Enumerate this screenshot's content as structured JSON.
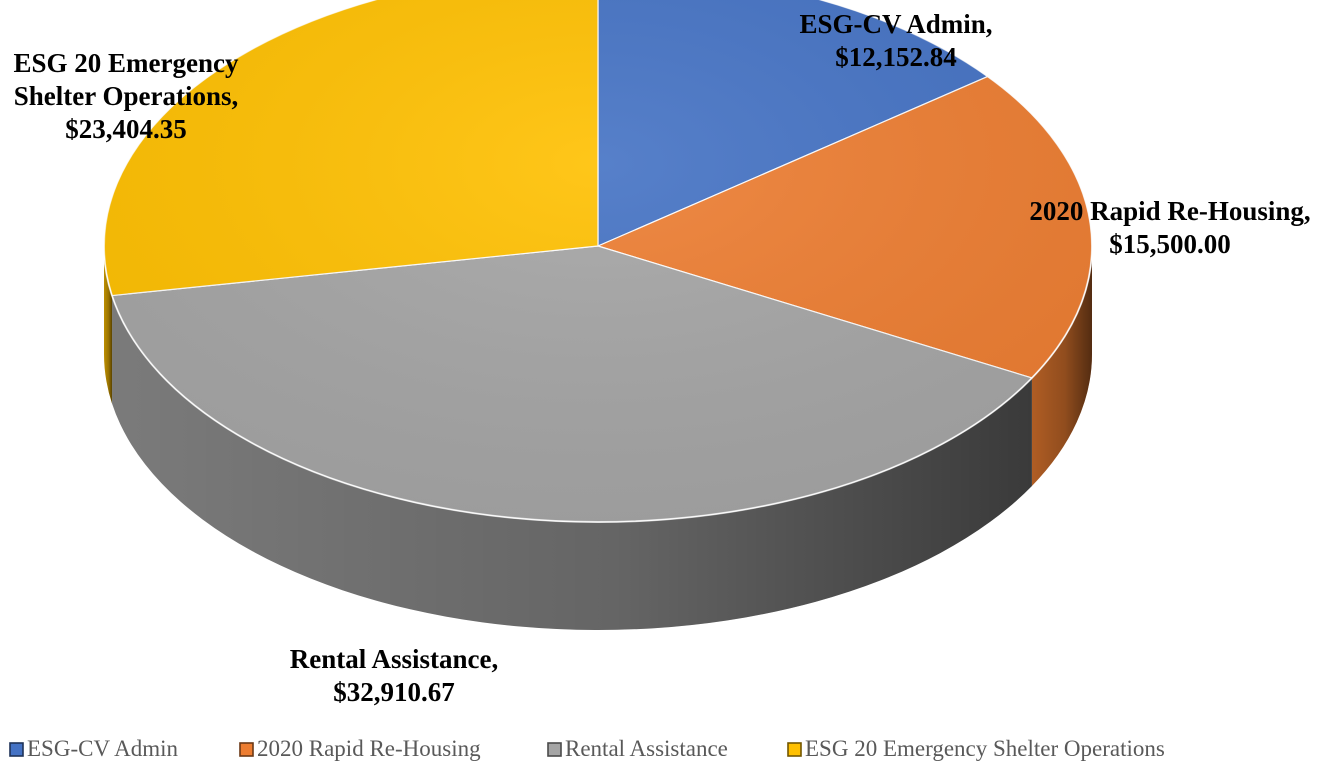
{
  "chart_data": {
    "type": "pie",
    "style": "3d",
    "legend_position": "bottom",
    "slices": [
      {
        "label": "ESG-CV Admin",
        "value": 12152.84,
        "value_text": "$12,152.84",
        "color": "#4472C4"
      },
      {
        "label": "2020 Rapid Re-Housing",
        "value": 15500.0,
        "value_text": "$15,500.00",
        "color": "#ED7D31"
      },
      {
        "label": "Rental Assistance",
        "value": 32910.67,
        "value_text": "$32,910.67",
        "color": "#A5A5A5"
      },
      {
        "label": "ESG 20 Emergency Shelter Operations",
        "value": 23404.35,
        "value_text": "$23,404.35",
        "color": "#FFC000"
      }
    ],
    "data_labels": [
      {
        "lines": [
          "ESG-CV Admin,",
          "$12,152.84"
        ]
      },
      {
        "lines": [
          "2020 Rapid Re-Housing,",
          "$15,500.00"
        ]
      },
      {
        "lines": [
          "Rental Assistance,",
          "$32,910.67"
        ]
      },
      {
        "lines": [
          "ESG 20 Emergency",
          "Shelter Operations,",
          "$23,404.35"
        ]
      }
    ],
    "legend": [
      "ESG-CV Admin",
      "2020 Rapid Re-Housing",
      "Rental Assistance",
      "ESG 20 Emergency Shelter Operations"
    ]
  }
}
